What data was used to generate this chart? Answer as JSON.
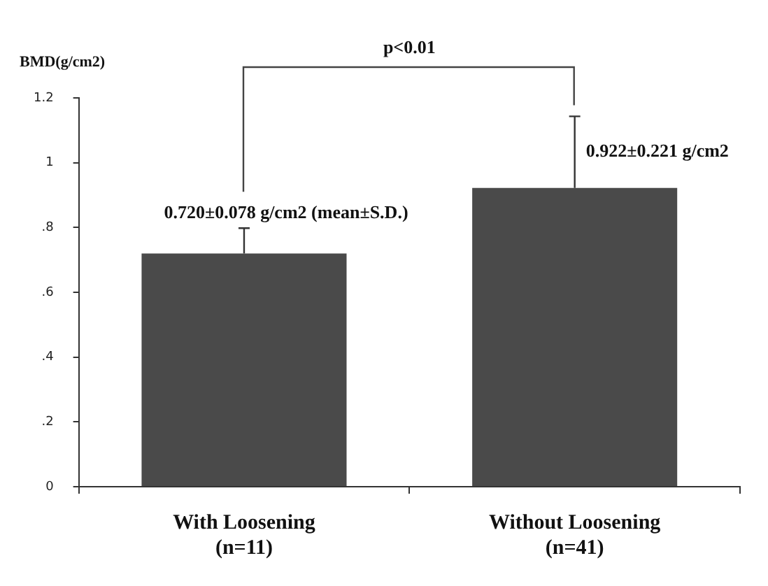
{
  "chart_data": {
    "type": "bar",
    "ylabel": "BMD(g/cm2)",
    "categories": [
      "With Loosening\n(n=11)",
      "Without Loosening\n(n=41)"
    ],
    "values": [
      0.72,
      0.922
    ],
    "errors": [
      [
        0.72,
        0.798
      ],
      [
        0.922,
        1.143
      ]
    ],
    "color": "#4a4a4a",
    "value_labels": [
      "0.720±0.078 g/cm2 (mean±S.D.)",
      "0.922±0.221 g/cm2"
    ],
    "annotations": [
      "p<0.01"
    ],
    "ylim": [
      0,
      1.2
    ],
    "yticks": [
      0,
      {
        "value": 0.2,
        "label": ".2"
      },
      {
        "value": 0.4,
        "label": ".4"
      },
      {
        "value": 0.6,
        "label": ".6"
      },
      {
        "value": 0.8,
        "label": ".8"
      },
      1,
      1.2
    ],
    "grid": false,
    "legend": false
  }
}
